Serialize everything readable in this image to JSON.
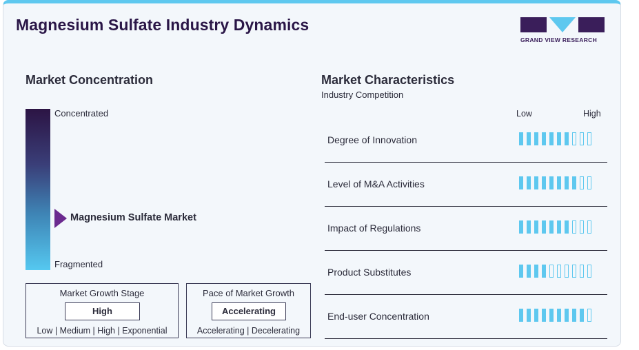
{
  "header": {
    "title": "Magnesium Sulfate Industry Dynamics",
    "brand": "GRAND VIEW RESEARCH"
  },
  "concentration": {
    "heading": "Market Concentration",
    "top_label": "Concentrated",
    "bottom_label": "Fragmented",
    "marker_label": "Magnesium Sulfate Market",
    "marker_level": 0.35
  },
  "growth_stage": {
    "title": "Market Growth Stage",
    "value": "High",
    "options": "Low | Medium | High | Exponential"
  },
  "pace": {
    "title": "Pace of Market Growth",
    "value": "Accelerating",
    "options": "Accelerating | Decelerating"
  },
  "characteristics": {
    "heading": "Market Characteristics",
    "subheading": "Industry Competition",
    "scale_low": "Low",
    "scale_high": "High",
    "total_segments": 10,
    "rows": [
      {
        "label": "Degree of Innovation",
        "level": 7
      },
      {
        "label": "Level of M&A Activities",
        "level": 8
      },
      {
        "label": "Impact of Regulations",
        "level": 7
      },
      {
        "label": "Product Substitutes",
        "level": 4
      },
      {
        "label": "End-user Concentration",
        "level": 9
      }
    ]
  },
  "colors": {
    "accent": "#5ec8ef",
    "brand_dark": "#2a1647",
    "marker": "#6b2a8f"
  }
}
